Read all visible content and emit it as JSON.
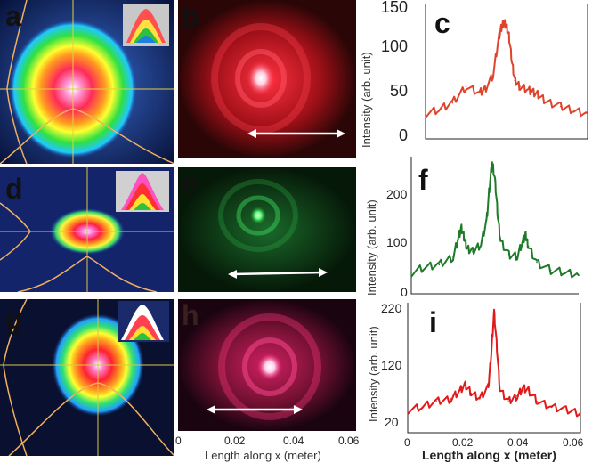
{
  "labels": {
    "a": "a",
    "b": "b",
    "c": "c",
    "d": "d",
    "e": "e",
    "f": "f",
    "g": "g",
    "h": "h",
    "i": "i"
  },
  "shared_x_axis": {
    "label_image": "Length along x (meter)",
    "label_plot": "Length along x (meter)",
    "ticks": [
      "0",
      "0.02",
      "0.04",
      "0.06"
    ]
  },
  "colors": {
    "row1_profile": "#e0432c",
    "row2_profile": "#1f7a2a",
    "row3_profile": "#e01a1a",
    "row1_glow": "#ff2a3a",
    "row2_glow": "#2ec24a",
    "row3_glow": "#ff2060"
  },
  "chart_data": [
    {
      "id": "c",
      "type": "line",
      "ylabel": "Intensity (arb. unit)",
      "ylim": [
        0,
        150
      ],
      "yticks": [
        "0",
        "50",
        "100",
        "150"
      ],
      "xlim": [
        0,
        0.06
      ],
      "x": [
        0.0,
        0.005,
        0.01,
        0.015,
        0.02,
        0.022,
        0.025,
        0.027,
        0.028,
        0.029,
        0.03,
        0.031,
        0.032,
        0.033,
        0.035,
        0.038,
        0.04,
        0.042,
        0.045,
        0.05,
        0.055,
        0.06
      ],
      "values": [
        28,
        32,
        40,
        58,
        52,
        55,
        70,
        110,
        122,
        130,
        125,
        112,
        85,
        65,
        58,
        55,
        52,
        48,
        40,
        36,
        32,
        28
      ]
    },
    {
      "id": "f",
      "type": "line",
      "ylabel": "Intensity (arb. unit)",
      "ylim": [
        0,
        260
      ],
      "yticks": [
        "0",
        "100",
        "200"
      ],
      "xlim": [
        0,
        0.06
      ],
      "x": [
        0.0,
        0.005,
        0.01,
        0.015,
        0.017,
        0.018,
        0.019,
        0.02,
        0.022,
        0.025,
        0.027,
        0.028,
        0.029,
        0.03,
        0.031,
        0.032,
        0.035,
        0.038,
        0.04,
        0.041,
        0.042,
        0.045,
        0.05,
        0.055,
        0.06
      ],
      "values": [
        40,
        50,
        55,
        70,
        110,
        125,
        105,
        85,
        80,
        95,
        140,
        200,
        250,
        215,
        150,
        100,
        75,
        70,
        100,
        110,
        90,
        60,
        45,
        40,
        35
      ]
    },
    {
      "id": "i",
      "type": "line",
      "ylabel": "Intensity (arb. unit)",
      "ylim": [
        0,
        230
      ],
      "yticks": [
        "20",
        "120",
        "220"
      ],
      "xlim": [
        0,
        0.06
      ],
      "xticks": [
        "0",
        "0.02",
        "0.04",
        "0.06"
      ],
      "xlabel": "Length along x (meter)",
      "x": [
        0.0,
        0.005,
        0.01,
        0.015,
        0.018,
        0.02,
        0.022,
        0.025,
        0.028,
        0.029,
        0.03,
        0.031,
        0.032,
        0.035,
        0.038,
        0.04,
        0.042,
        0.045,
        0.05,
        0.055,
        0.06
      ],
      "values": [
        40,
        45,
        55,
        60,
        75,
        85,
        70,
        60,
        80,
        140,
        215,
        150,
        75,
        55,
        65,
        80,
        75,
        55,
        45,
        40,
        35
      ]
    }
  ]
}
